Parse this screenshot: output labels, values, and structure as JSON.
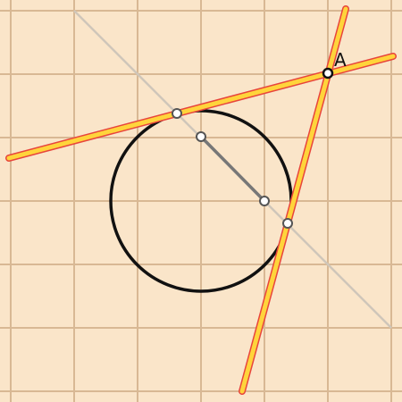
{
  "board": {
    "background_color": "#fae5c9",
    "grid_color": "#d8b894",
    "grid_step_units": 1
  },
  "labels": {
    "point_a": "A"
  },
  "colors": {
    "tangent_line_fill": "#ffd43b",
    "tangent_line_edge": "#e8453c",
    "circle_stroke": "#111111",
    "segment_stroke": "#777777",
    "diagonal_stroke": "#cfc6ba",
    "point_fill": "#ffffff",
    "point_stroke": "#555555"
  }
}
